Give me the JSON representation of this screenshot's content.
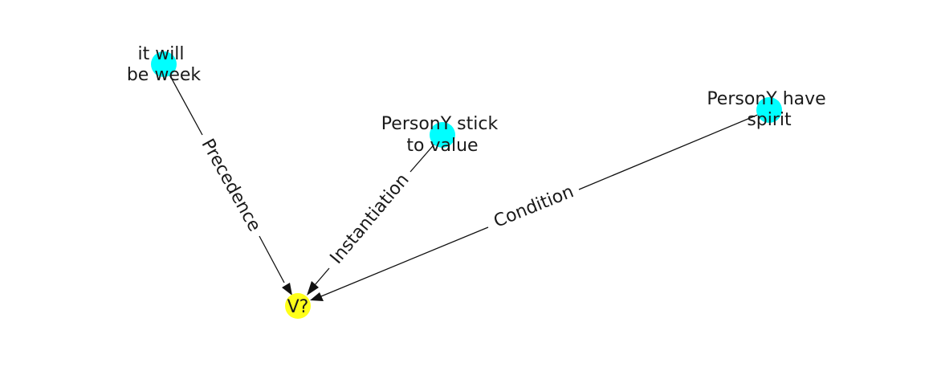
{
  "graph": {
    "nodes": [
      {
        "id": "n1",
        "label_lines": [
          "it will",
          "be week"
        ],
        "color": "#00FFFF"
      },
      {
        "id": "n2",
        "label_lines": [
          "PersonY stick",
          "to value"
        ],
        "color": "#00FFFF"
      },
      {
        "id": "n3",
        "label_lines": [
          "PersonY have",
          "spirit"
        ],
        "color": "#00FFFF"
      },
      {
        "id": "target",
        "label_lines": [
          "V?"
        ],
        "color": "#FFFF1A"
      }
    ],
    "edges": [
      {
        "from": "n1",
        "to": "target",
        "label": "Precedence"
      },
      {
        "from": "n2",
        "to": "target",
        "label": "Instantiation"
      },
      {
        "from": "n3",
        "to": "target",
        "label": "Condition"
      }
    ]
  }
}
